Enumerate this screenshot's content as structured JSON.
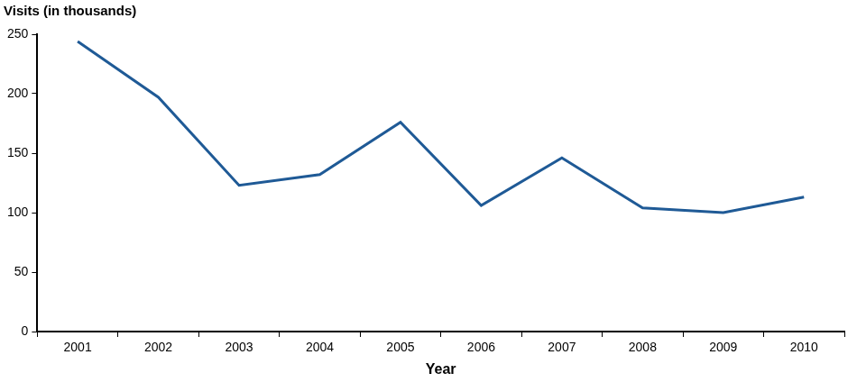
{
  "chart_data": {
    "type": "line",
    "ylabel": "Visits (in thousands)",
    "xlabel": "Year",
    "categories": [
      "2001",
      "2002",
      "2003",
      "2004",
      "2005",
      "2006",
      "2007",
      "2008",
      "2009",
      "2010"
    ],
    "values": [
      244,
      197,
      123,
      132,
      176,
      106,
      146,
      104,
      100,
      113
    ],
    "color": "#1f5a96",
    "ylim": [
      0,
      250
    ],
    "yticks": [
      0,
      50,
      100,
      150,
      200,
      250
    ],
    "grid": false
  }
}
